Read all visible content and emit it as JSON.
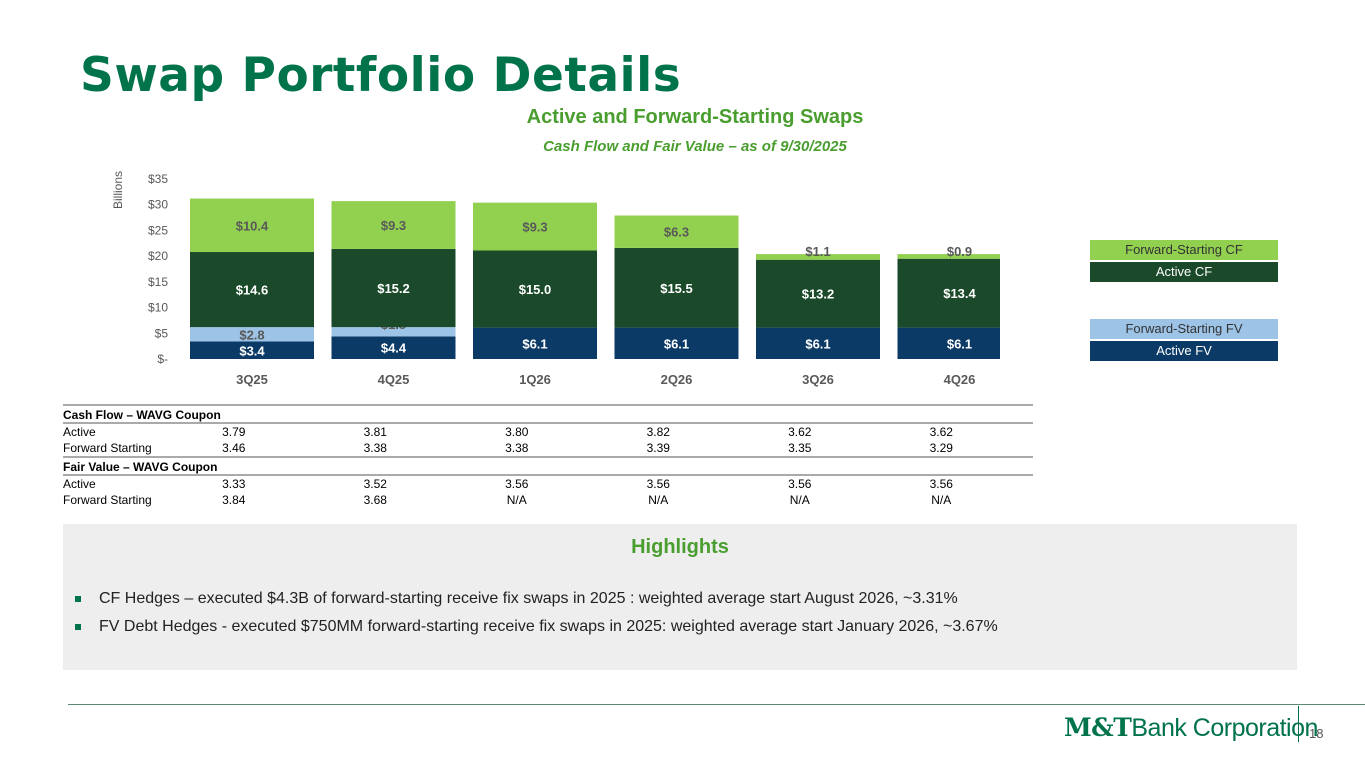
{
  "title": "Swap Portfolio Details",
  "chart_data": {
    "type": "bar",
    "stacked": true,
    "title": "Active and Forward-Starting Swaps",
    "subtitle": "Cash Flow and Fair Value – as of 9/30/2025",
    "ylabel": "Billions",
    "ylim": [
      0,
      35
    ],
    "yticks": [
      {
        "v": 0,
        "label": "$-"
      },
      {
        "v": 5,
        "label": "$5"
      },
      {
        "v": 10,
        "label": "$10"
      },
      {
        "v": 15,
        "label": "$15"
      },
      {
        "v": 20,
        "label": "$20"
      },
      {
        "v": 25,
        "label": "$25"
      },
      {
        "v": 30,
        "label": "$30"
      },
      {
        "v": 35,
        "label": "$35"
      }
    ],
    "categories": [
      "3Q25",
      "4Q25",
      "1Q26",
      "2Q26",
      "3Q26",
      "4Q26"
    ],
    "series": [
      {
        "name": "Active FV",
        "color": "#0b3a66",
        "labelColor": "#ffffff",
        "values": [
          3.4,
          4.4,
          6.1,
          6.1,
          6.1,
          6.1
        ],
        "labels": [
          "$3.4",
          "$4.4",
          "$6.1",
          "$6.1",
          "$6.1",
          "$6.1"
        ]
      },
      {
        "name": "Forward-Starting FV",
        "color": "#9dc3e6",
        "labelColor": "#595959",
        "values": [
          2.8,
          1.8,
          0,
          0,
          0,
          0
        ],
        "labels": [
          "$2.8",
          "$1.8",
          "",
          "",
          "",
          ""
        ]
      },
      {
        "name": "Active CF",
        "color": "#1a4a2a",
        "labelColor": "#ffffff",
        "values": [
          14.6,
          15.2,
          15.0,
          15.5,
          13.2,
          13.4
        ],
        "labels": [
          "$14.6",
          "$15.2",
          "$15.0",
          "$15.5",
          "$13.2",
          "$13.4"
        ]
      },
      {
        "name": "Forward-Starting CF",
        "color": "#92d050",
        "labelColor": "#595959",
        "values": [
          10.4,
          9.3,
          9.3,
          6.3,
          1.1,
          0.9
        ],
        "labels": [
          "$10.4",
          "$9.3",
          "$9.3",
          "$6.3",
          "$1.1",
          "$0.9"
        ]
      }
    ],
    "legend": [
      {
        "label": "Forward-Starting CF",
        "color": "#92d050",
        "text": "#333333"
      },
      {
        "label": "Active CF",
        "color": "#1a4a2a",
        "text": "#ffffff"
      },
      {
        "label": "Forward-Starting FV",
        "color": "#9dc3e6",
        "text": "#333333"
      },
      {
        "label": "Active FV",
        "color": "#0b3a66",
        "text": "#ffffff"
      }
    ]
  },
  "table": {
    "sections": [
      {
        "title": "Cash  Flow – WAVG Coupon",
        "rows": [
          {
            "label": "Active",
            "values": [
              "3.79",
              "3.81",
              "3.80",
              "3.82",
              "3.62",
              "3.62"
            ]
          },
          {
            "label": "Forward Starting",
            "values": [
              "3.46",
              "3.38",
              "3.38",
              "3.39",
              "3.35",
              "3.29"
            ]
          }
        ]
      },
      {
        "title": "Fair Value – WAVG Coupon",
        "rows": [
          {
            "label": "Active",
            "values": [
              "3.33",
              "3.52",
              "3.56",
              "3.56",
              "3.56",
              "3.56"
            ]
          },
          {
            "label": "Forward Starting",
            "values": [
              "3.84",
              "3.68",
              "N/A",
              "N/A",
              "N/A",
              "N/A"
            ]
          }
        ]
      }
    ]
  },
  "highlights": {
    "title": "Highlights",
    "bullets": [
      "CF Hedges – executed $4.3B of forward-starting receive fix swaps in 2025 : weighted average start August 2026, ~3.31%",
      "FV Debt Hedges - executed $750MM forward-starting receive fix swaps in 2025: weighted average start January 2026, ~3.67%"
    ]
  },
  "footer": {
    "logo_main": "M&T",
    "logo_rest": "Bank Corporation",
    "page_number": "18"
  }
}
